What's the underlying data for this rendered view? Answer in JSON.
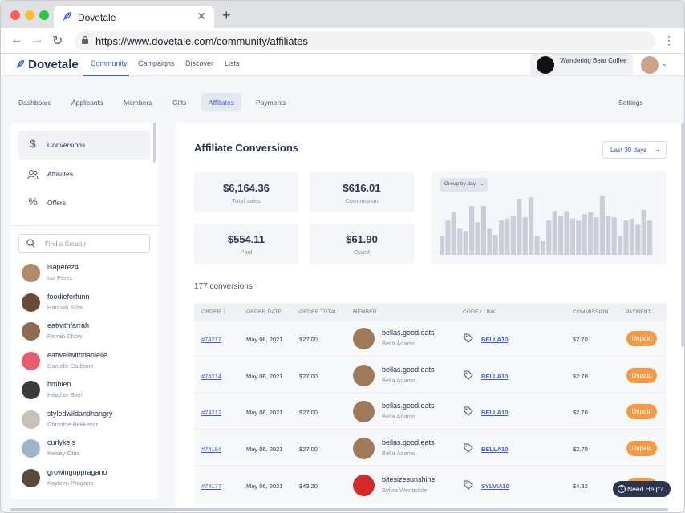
{
  "browser": {
    "tab_title": "Dovetale",
    "url": "https://www.dovetale.com/community/affiliates"
  },
  "header": {
    "logo": "Dovetale",
    "nav": [
      "Community",
      "Campaigns",
      "Discover",
      "Lists"
    ],
    "active_nav": "Community",
    "brand_name": "Wandering Bear Coffee"
  },
  "subnav": {
    "items": [
      "Dashboard",
      "Applicants",
      "Members",
      "Gifts",
      "Affiliates",
      "Payments"
    ],
    "active": "Affiliates",
    "settings": "Settings"
  },
  "sidebar": {
    "items": [
      {
        "label": "Conversions",
        "icon": "dollar-icon"
      },
      {
        "label": "Affiliates",
        "icon": "users-icon"
      },
      {
        "label": "Offers",
        "icon": "percent-icon"
      }
    ],
    "search_placeholder": "Find a Creator",
    "creators": [
      {
        "handle": "isaperez4",
        "name": "Isa Perez",
        "color": "#b08a6a"
      },
      {
        "handle": "foodieforfunn",
        "name": "Hannah Sklar",
        "color": "#6b4a3a"
      },
      {
        "handle": "eatwithfarrah",
        "name": "Farrah Chow",
        "color": "#8f6a4e"
      },
      {
        "handle": "eatwellwithdanielle",
        "name": "Danielle Sarbone",
        "color": "#e85d6a"
      },
      {
        "handle": "hmbien",
        "name": "Heather Bien",
        "color": "#3a3a3a"
      },
      {
        "handle": "styledwildandhangry",
        "name": "Christine Bekkevar",
        "color": "#c7c0b8"
      },
      {
        "handle": "curlykels",
        "name": "Kelsey Ottis",
        "color": "#9fb4c8"
      },
      {
        "handle": "growinguppragano",
        "name": "Kayleen Pragano",
        "color": "#5a4a3c"
      }
    ]
  },
  "main": {
    "title": "Affiliate Conversions",
    "range": "Last 30 days",
    "stats": [
      {
        "value": "$6,164.36",
        "label": "Total sales"
      },
      {
        "value": "$616.01",
        "label": "Commission"
      },
      {
        "value": "$554.11",
        "label": "Paid"
      },
      {
        "value": "$61.90",
        "label": "Owed"
      }
    ],
    "group_by": "Group by day",
    "conversions_count": "177 conversions",
    "columns": [
      "ORDER",
      "ORDER DATE",
      "ORDER TOTAL",
      "MEMBER",
      "CODE / LINK",
      "COMMISSION",
      "PAYMENT"
    ],
    "rows": [
      {
        "order": "#74217",
        "date": "May 06, 2021",
        "total": "$27.00",
        "handle": "bellas.good.eats",
        "name": "Bella Adams",
        "code": "BELLA10",
        "commission": "$2.70",
        "payment": "Unpaid",
        "avatar": "#a0785a"
      },
      {
        "order": "#74214",
        "date": "May 06, 2021",
        "total": "$27.00",
        "handle": "bellas.good.eats",
        "name": "Bella Adams",
        "code": "BELLA10",
        "commission": "$2.70",
        "payment": "Unpaid",
        "avatar": "#a0785a"
      },
      {
        "order": "#74212",
        "date": "May 06, 2021",
        "total": "$27.00",
        "handle": "bellas.good.eats",
        "name": "Bella Adams",
        "code": "BELLA10",
        "commission": "$2.70",
        "payment": "Unpaid",
        "avatar": "#a0785a"
      },
      {
        "order": "#74184",
        "date": "May 06, 2021",
        "total": "$27.00",
        "handle": "bellas.good.eats",
        "name": "Bella Adams",
        "code": "BELLA10",
        "commission": "$2.70",
        "payment": "Unpaid",
        "avatar": "#a0785a"
      },
      {
        "order": "#74177",
        "date": "May 06, 2021",
        "total": "$43.20",
        "handle": "bitesizesunshine",
        "name": "Sylvia Wentroble",
        "code": "SYLVIA10",
        "commission": "$4.32",
        "payment": "Unpaid",
        "avatar": "#d62a2a"
      }
    ]
  },
  "chart_data": {
    "type": "bar",
    "values": [
      30,
      55,
      68,
      42,
      38,
      78,
      52,
      78,
      42,
      32,
      55,
      58,
      62,
      90,
      60,
      92,
      30,
      22,
      55,
      70,
      62,
      70,
      58,
      55,
      65,
      68,
      60,
      95,
      62,
      60,
      30,
      55,
      58,
      48,
      72,
      55
    ]
  },
  "help": "Need Help?",
  "colors": {
    "accent": "#3b5bdb",
    "badge": "#f29a46",
    "bars": "#c9ced8"
  }
}
